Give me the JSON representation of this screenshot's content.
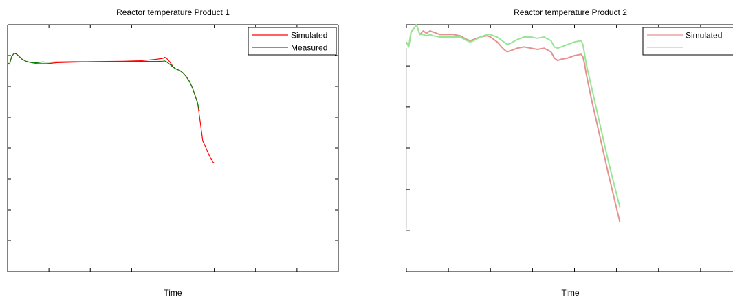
{
  "chart_data": [
    {
      "type": "line",
      "title": "Reactor temperature Product 1",
      "xlabel": "Time",
      "ylabel": "",
      "xlim": [
        0,
        100
      ],
      "ylim": [
        0,
        100
      ],
      "grid": false,
      "legend": "top-right",
      "xticks": [
        0,
        12.5,
        25,
        37.5,
        50,
        62.5,
        75,
        87.5,
        100
      ],
      "yticks": [
        0,
        12.5,
        25,
        37.5,
        50,
        62.5,
        75,
        87.5,
        100
      ],
      "series": [
        {
          "name": "Simulated",
          "color": "#ff0000",
          "x": [
            0,
            0.6,
            1.2,
            2,
            2.8,
            3.6,
            4.4,
            5.5,
            6.6,
            7.8,
            9,
            10.5,
            12,
            15,
            20,
            25,
            30,
            35,
            40,
            42,
            45,
            47,
            47.5,
            48,
            49,
            50,
            51,
            52,
            53,
            54,
            55,
            56,
            56.5,
            57,
            57.5,
            58,
            58.5,
            59,
            60,
            61,
            62,
            62.5
          ],
          "y": [
            84.5,
            84,
            87,
            88.5,
            88,
            87,
            86,
            85.2,
            84.8,
            84.5,
            84.2,
            84.2,
            84.2,
            84.6,
            84.8,
            85,
            85.1,
            85.2,
            85.4,
            85.6,
            86,
            86.4,
            86.8,
            86.5,
            85,
            83,
            82,
            81.5,
            80.5,
            79,
            77,
            74,
            72,
            70,
            68,
            63,
            58,
            53,
            50,
            47,
            44.5,
            44
          ]
        },
        {
          "name": "Measured",
          "color": "#008000",
          "x": [
            0,
            0.6,
            1.2,
            2,
            2.8,
            3.6,
            4.4,
            5.5,
            6.6,
            7.8,
            9,
            10.5,
            12,
            15,
            20,
            25,
            30,
            35,
            40,
            42,
            45,
            47,
            47.5,
            48,
            49,
            50,
            51,
            52,
            53,
            54,
            55,
            56,
            56.5,
            57,
            57.5,
            58
          ],
          "y": [
            84.5,
            84,
            87,
            88.5,
            88,
            87,
            86,
            85.2,
            84.8,
            84.5,
            84.6,
            84.9,
            84.8,
            84.9,
            85,
            85,
            85,
            85.1,
            85.1,
            85.1,
            85.1,
            85.2,
            85.3,
            85,
            84,
            82.8,
            82,
            81.5,
            80.5,
            79,
            77,
            74,
            72,
            70,
            68,
            65
          ]
        }
      ]
    },
    {
      "type": "line",
      "title": "Reactor temperature Product 2",
      "xlabel": "Time",
      "ylabel": "",
      "xlim": [
        0,
        100
      ],
      "ylim": [
        0,
        100
      ],
      "grid": false,
      "legend": "top-right",
      "xticks": [
        0,
        12.5,
        25,
        37.5,
        50,
        62.5,
        75,
        87.5,
        100
      ],
      "yticks": [
        16.7,
        33.3,
        50,
        66.7,
        83.3
      ],
      "series": [
        {
          "name": "Simulated",
          "color": "#e69191",
          "x": [
            0,
            0.7,
            1.4,
            2,
            3,
            4,
            5,
            6,
            7,
            8,
            10,
            12,
            14,
            16,
            18,
            19,
            20,
            22,
            24,
            25,
            27,
            29,
            30,
            31,
            33,
            35,
            37,
            39,
            41,
            43,
            44,
            45,
            46,
            48,
            50,
            52,
            52.5,
            53,
            53.5,
            55,
            60,
            63.5
          ],
          "y": [
            93,
            91,
            97,
            98,
            100,
            96,
            97.5,
            96.5,
            97.5,
            97,
            96,
            96,
            96,
            95.5,
            94,
            93.5,
            94,
            95,
            95.5,
            95,
            93,
            90,
            89,
            89.5,
            90.5,
            91,
            90.5,
            90,
            90.5,
            89,
            86.5,
            85.5,
            86,
            86.5,
            87.5,
            88,
            87,
            84,
            80,
            70,
            40,
            20
          ]
        },
        {
          "name": "",
          "color": "#96e696",
          "x": [
            0,
            0.7,
            1.4,
            2,
            3,
            4,
            5,
            6,
            7,
            8,
            10,
            12,
            14,
            16,
            18,
            19,
            20,
            22,
            24,
            25,
            27,
            29,
            30,
            31,
            33,
            35,
            37,
            39,
            41,
            43,
            44,
            45,
            46,
            48,
            50,
            52,
            52.5,
            53,
            53.5,
            55,
            60,
            63.5
          ],
          "y": [
            93,
            91,
            97,
            98,
            100,
            96,
            96,
            95.5,
            96,
            95.5,
            95,
            95,
            95,
            95,
            93.5,
            93,
            93.5,
            95,
            96,
            96,
            95,
            93,
            92,
            92.5,
            94,
            95,
            95,
            94.5,
            95,
            93.5,
            91,
            90.5,
            91,
            92,
            93,
            93.5,
            92,
            88,
            84,
            75,
            45,
            26
          ]
        }
      ]
    }
  ]
}
